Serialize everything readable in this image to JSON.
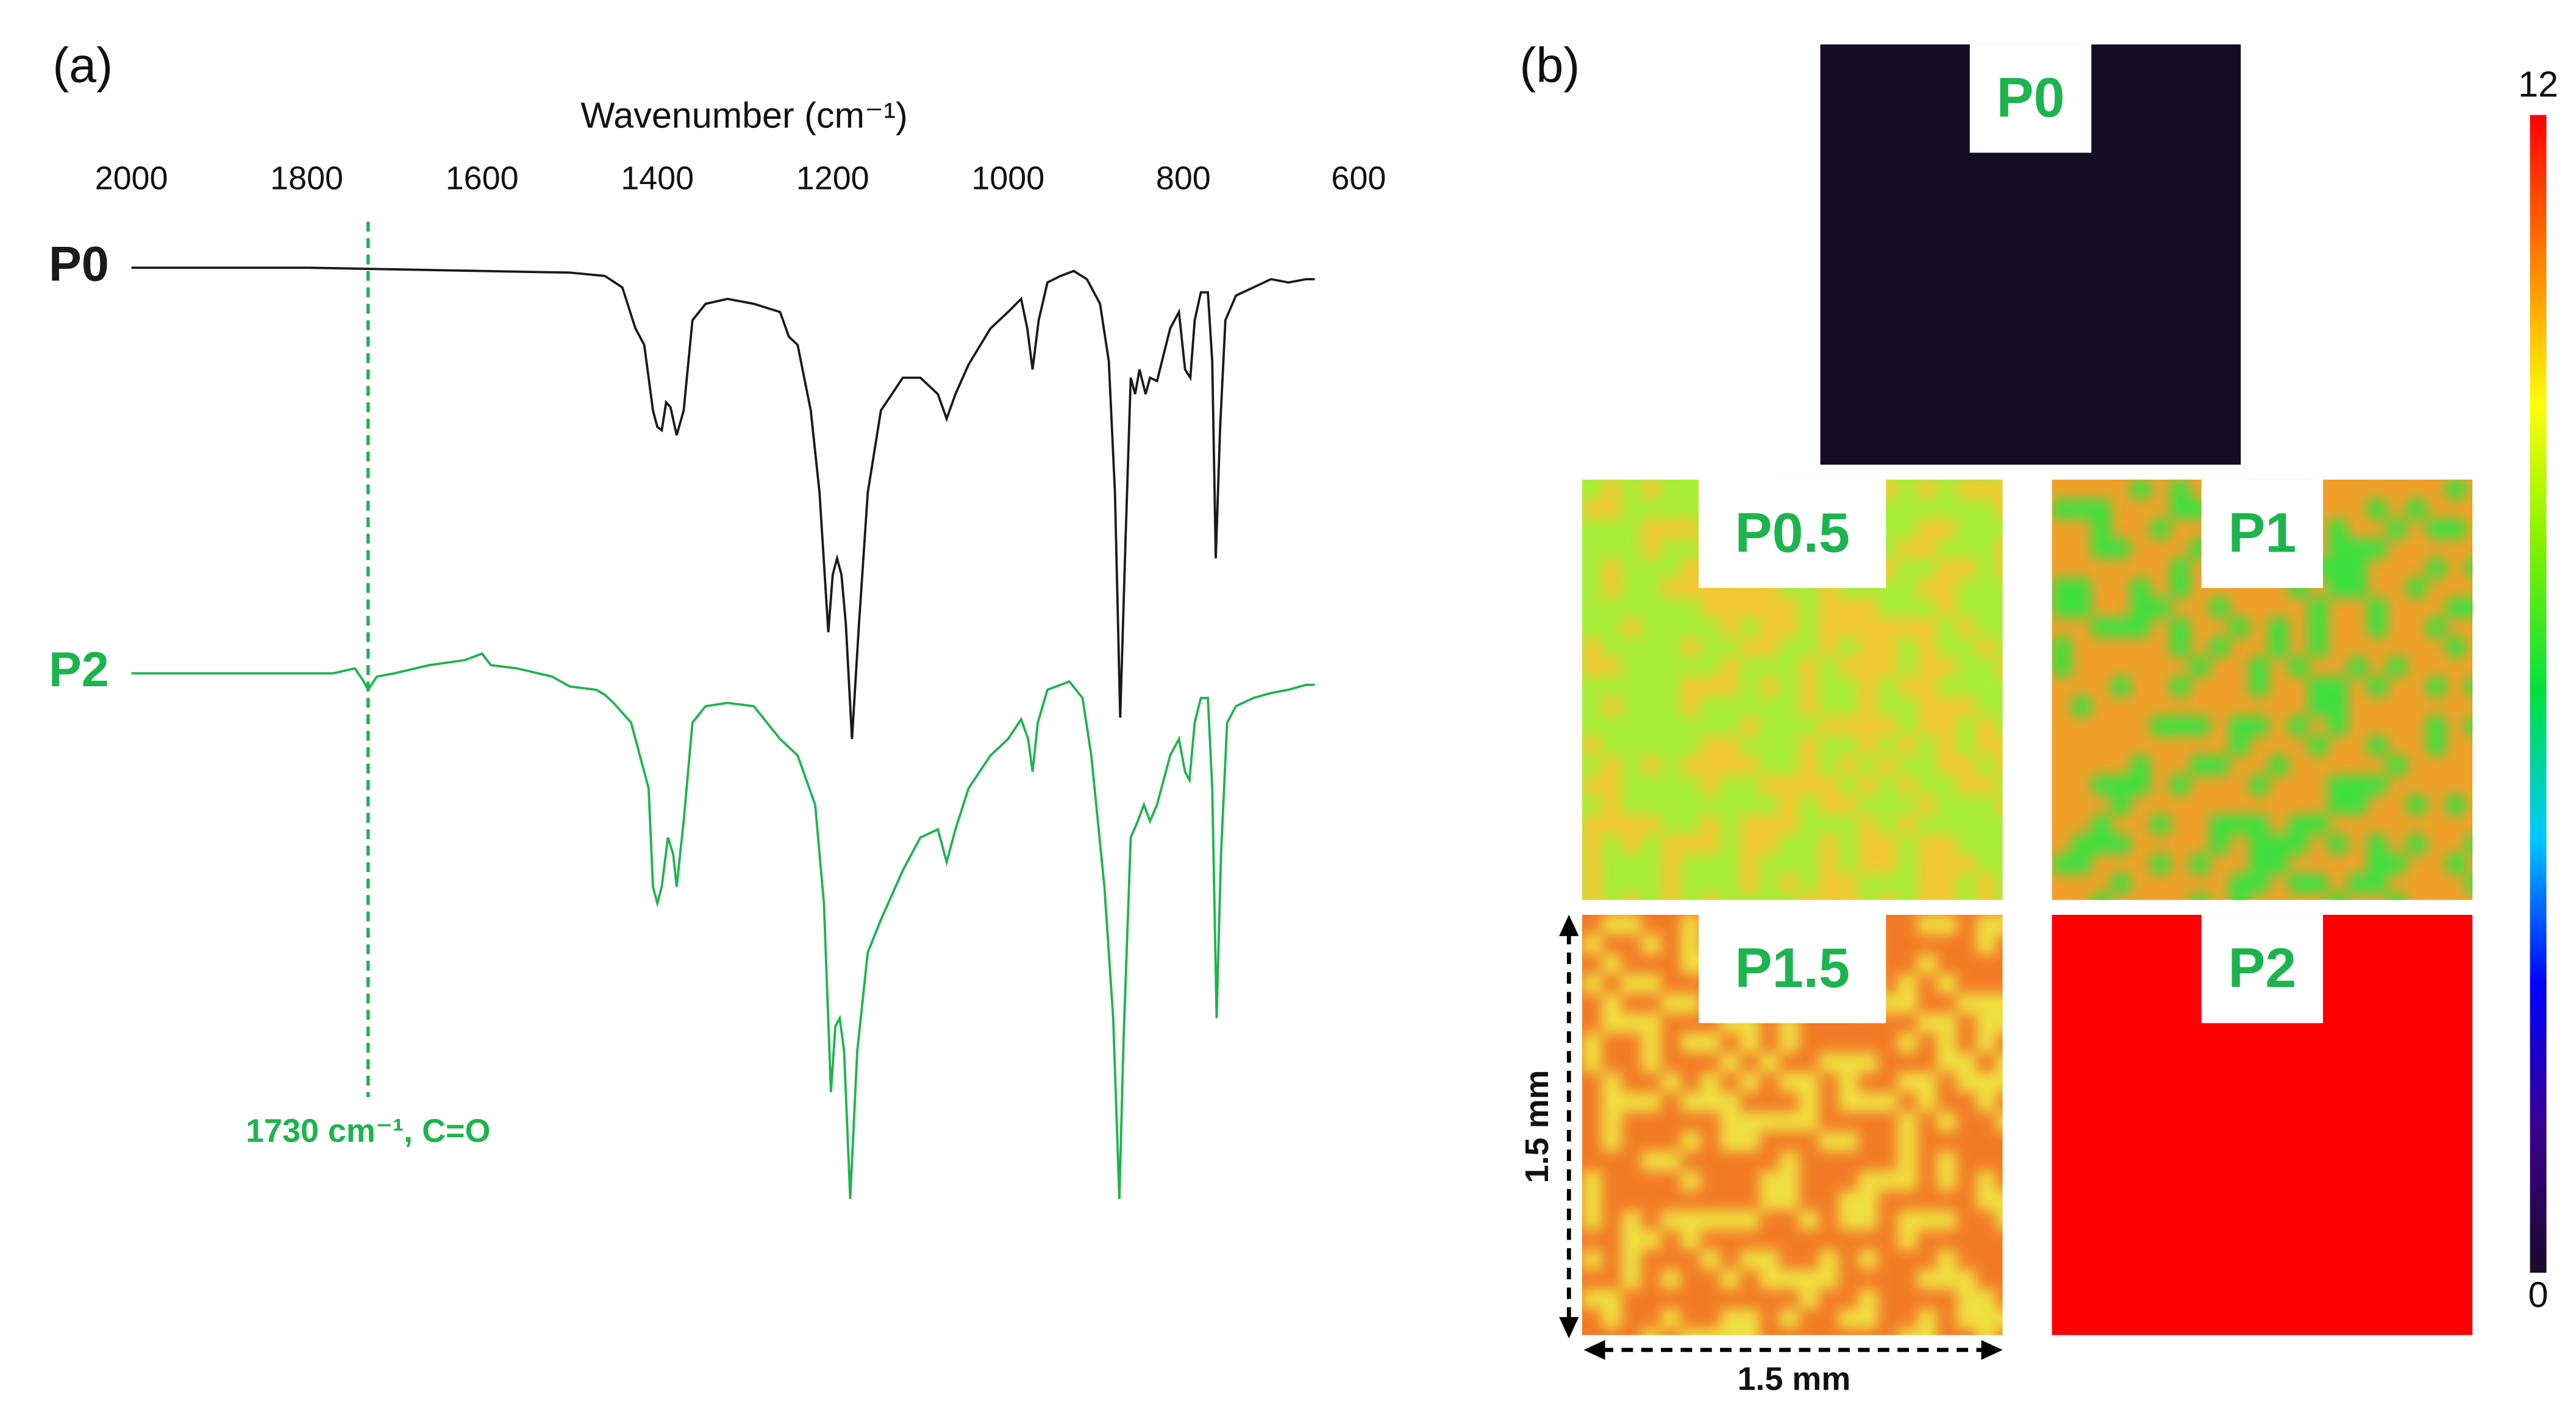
{
  "chart_data": [
    {
      "type": "line",
      "panel_label": "(a)",
      "xlabel": "Wavenumber (cm⁻¹)",
      "xlim": [
        2000,
        600
      ],
      "xticks": [
        2000,
        1800,
        1600,
        1400,
        1200,
        1000,
        800,
        600
      ],
      "ylim": [
        -600,
        115
      ],
      "series": [
        {
          "name": "P0",
          "color": "#1a1a1a",
          "x": [
            2000,
            1800,
            1600,
            1500,
            1460,
            1440,
            1425,
            1415,
            1405,
            1400,
            1395,
            1390,
            1385,
            1378,
            1370,
            1360,
            1345,
            1320,
            1290,
            1260,
            1250,
            1240,
            1225,
            1215,
            1205,
            1200,
            1195,
            1190,
            1185,
            1178,
            1170,
            1160,
            1145,
            1120,
            1100,
            1080,
            1070,
            1060,
            1045,
            1020,
            1000,
            985,
            978,
            972,
            965,
            955,
            940,
            925,
            910,
            895,
            885,
            878,
            872,
            866,
            860,
            855,
            850,
            843,
            838,
            830,
            815,
            805,
            798,
            792,
            787,
            780,
            772,
            767,
            763,
            758,
            752,
            740,
            720,
            700,
            680,
            660,
            650
          ],
          "values": [
            0,
            0,
            -2,
            -3,
            -5,
            -12,
            -37,
            -47,
            -87,
            -97,
            -99,
            -82,
            -85,
            -102,
            -87,
            -32,
            -22,
            -19,
            -22,
            -27,
            -42,
            -47,
            -87,
            -137,
            -222,
            -187,
            -177,
            -187,
            -217,
            -287,
            -217,
            -137,
            -87,
            -67,
            -67,
            -77,
            -92,
            -77,
            -59,
            -37,
            -27,
            -19,
            -37,
            -62,
            -32,
            -9,
            -5,
            -2,
            -7,
            -22,
            -57,
            -137,
            -274,
            -167,
            -67,
            -77,
            -62,
            -77,
            -67,
            -69,
            -37,
            -27,
            -62,
            -67,
            -32,
            -15,
            -15,
            -57,
            -177,
            -97,
            -32,
            -17,
            -12,
            -7,
            -9,
            -7,
            -7
          ]
        },
        {
          "name": "P2",
          "color": "#1db44e",
          "x": [
            2000,
            1900,
            1800,
            1770,
            1745,
            1735,
            1730,
            1720,
            1700,
            1660,
            1620,
            1600,
            1590,
            1560,
            1520,
            1500,
            1470,
            1460,
            1450,
            1430,
            1420,
            1410,
            1405,
            1400,
            1395,
            1388,
            1382,
            1378,
            1370,
            1360,
            1345,
            1320,
            1290,
            1260,
            1240,
            1220,
            1210,
            1202,
            1197,
            1192,
            1187,
            1180,
            1172,
            1160,
            1145,
            1120,
            1100,
            1080,
            1070,
            1060,
            1045,
            1020,
            1000,
            985,
            977,
            972,
            966,
            955,
            930,
            915,
            905,
            890,
            880,
            873,
            868,
            860,
            852,
            845,
            838,
            830,
            815,
            805,
            798,
            793,
            787,
            780,
            772,
            767,
            762,
            757,
            750,
            740,
            720,
            700,
            680,
            660,
            650
          ],
          "values": [
            -247,
            -247,
            -247,
            -247,
            -244,
            -252,
            -257,
            -249,
            -247,
            -242,
            -239,
            -235,
            -242,
            -244,
            -249,
            -255,
            -257,
            -260,
            -265,
            -277,
            -297,
            -317,
            -377,
            -387,
            -377,
            -347,
            -357,
            -377,
            -337,
            -277,
            -267,
            -265,
            -267,
            -287,
            -297,
            -327,
            -387,
            -502,
            -462,
            -457,
            -477,
            -567,
            -477,
            -417,
            -397,
            -367,
            -347,
            -342,
            -362,
            -342,
            -317,
            -297,
            -287,
            -275,
            -287,
            -307,
            -277,
            -257,
            -252,
            -262,
            -297,
            -377,
            -457,
            -567,
            -467,
            -347,
            -337,
            -327,
            -337,
            -327,
            -297,
            -287,
            -307,
            -312,
            -277,
            -262,
            -262,
            -317,
            -457,
            -357,
            -277,
            -267,
            -262,
            -259,
            -257,
            -254,
            -254
          ]
        }
      ],
      "annotation": {
        "x": 1730,
        "text": "1730 cm⁻¹, C=O",
        "color": "#1db44e"
      }
    },
    {
      "type": "heatmap",
      "panel_label": "(b)",
      "maps": [
        {
          "label": "P0",
          "colors": [
            "#140c22",
            "#140c22"
          ]
        },
        {
          "label": "P0.5",
          "colors": [
            "#a8ee38",
            "#f2c830"
          ]
        },
        {
          "label": "P1",
          "colors": [
            "#f0a028",
            "#3ce040"
          ]
        },
        {
          "label": "P1.5",
          "colors": [
            "#f27a26",
            "#f0e040"
          ]
        },
        {
          "label": "P2",
          "colors": [
            "#ff0000",
            "#ff0000"
          ]
        }
      ],
      "label_color": "#1db44e",
      "colorbar": {
        "ylim": [
          0,
          12
        ],
        "yticks": [
          0,
          12
        ],
        "colors": [
          "#1a0a2a",
          "#3a0090",
          "#0000ff",
          "#00c8ff",
          "#00e040",
          "#80f000",
          "#ffff00",
          "#ff8000",
          "#ff0000"
        ]
      },
      "scale_bars": [
        "1.5 mm",
        "1.5 mm"
      ]
    }
  ]
}
